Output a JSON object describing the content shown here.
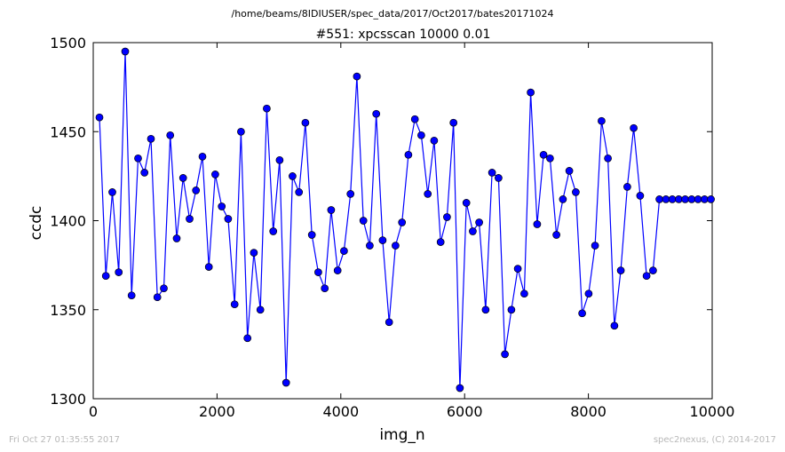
{
  "header": {
    "file_path": "/home/beams/8IDIUSER/spec_data/2017/Oct2017/bates20171024"
  },
  "footer": {
    "timestamp": "Fri Oct 27 01:35:55 2017",
    "credit": "spec2nexus, (C) 2014-2017"
  },
  "colors": {
    "series": "#0000ff",
    "axes": "#000000",
    "footer_text": "#b8b8b8"
  },
  "chart_data": {
    "type": "line",
    "title": "#551: xpcsscan 10000 0.01",
    "xlabel": "img_n",
    "ylabel": "ccdc",
    "xlim": [
      0,
      10000
    ],
    "ylim": [
      1300,
      1500
    ],
    "xticks": [
      0,
      2000,
      4000,
      6000,
      8000,
      10000
    ],
    "yticks": [
      1300,
      1350,
      1400,
      1450,
      1500
    ],
    "xtick_labels": [
      "0",
      "2000",
      "4000",
      "6000",
      "8000",
      "10000"
    ],
    "ytick_labels": [
      "1300",
      "1350",
      "1400",
      "1450",
      "1500"
    ],
    "grid": false,
    "legend": "none",
    "marker": "circle",
    "series": [
      {
        "x": [
          100,
          204,
          308,
          412,
          516,
          620,
          724,
          828,
          932,
          1036,
          1140,
          1244,
          1348,
          1452,
          1556,
          1660,
          1764,
          1868,
          1972,
          2076,
          2180,
          2284,
          2388,
          2492,
          2596,
          2700,
          2804,
          2908,
          3012,
          3116,
          3220,
          3324,
          3428,
          3532,
          3636,
          3740,
          3844,
          3948,
          4052,
          4156,
          4260,
          4364,
          4468,
          4572,
          4676,
          4780,
          4884,
          4988,
          5092,
          5196,
          5300,
          5404,
          5508,
          5612,
          5716,
          5820,
          5924,
          6028,
          6132,
          6236,
          6340,
          6444,
          6548,
          6652,
          6756,
          6860,
          6964,
          7068,
          7172,
          7276,
          7380,
          7484,
          7588,
          7692,
          7796,
          7900,
          8004,
          8108,
          8212,
          8316,
          8420,
          8524,
          8628,
          8732,
          8836,
          8940,
          9044,
          9148,
          9252,
          9356,
          9460,
          9564,
          9668,
          9772,
          9876,
          9980
        ],
        "y": [
          1458,
          1369,
          1416,
          1371,
          1495,
          1358,
          1435,
          1427,
          1446,
          1357,
          1362,
          1448,
          1390,
          1424,
          1401,
          1417,
          1436,
          1374,
          1426,
          1408,
          1401,
          1353,
          1450,
          1334,
          1382,
          1350,
          1463,
          1394,
          1434,
          1309,
          1425,
          1416,
          1455,
          1392,
          1371,
          1362,
          1406,
          1372,
          1383,
          1415,
          1481,
          1400,
          1386,
          1460,
          1389,
          1343,
          1386,
          1399,
          1437,
          1457,
          1448,
          1415,
          1445,
          1388,
          1402,
          1455,
          1306,
          1410,
          1394,
          1399,
          1350,
          1427,
          1424,
          1325,
          1350,
          1373,
          1359,
          1472,
          1398,
          1437,
          1435,
          1392,
          1412,
          1428,
          1416,
          1348,
          1359,
          1386,
          1456,
          1435,
          1341,
          1372,
          1419,
          1452,
          1414,
          1369,
          1372,
          1412,
          1412,
          1412,
          1412,
          1412,
          1412,
          1412,
          1412,
          1412
        ]
      }
    ]
  }
}
